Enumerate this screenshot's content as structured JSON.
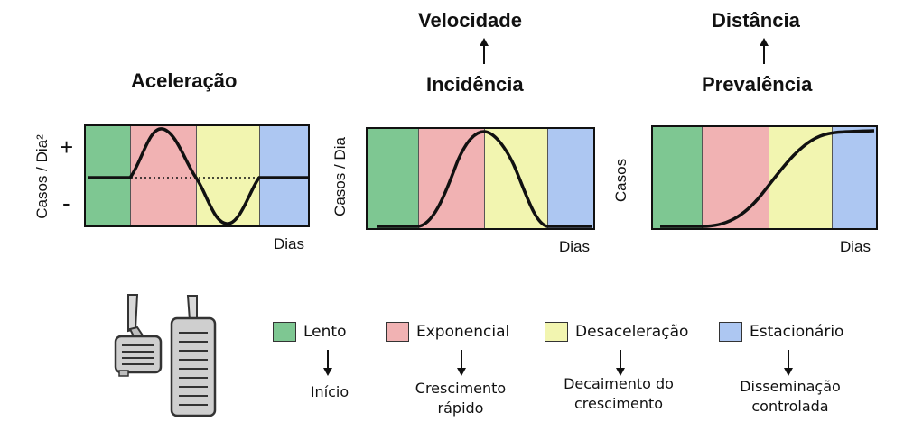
{
  "titles": {
    "acceleration": "Aceleração",
    "velocity": "Velocidade",
    "incidence": "Incidência",
    "distance": "Distância",
    "prevalence": "Prevalência"
  },
  "axes": {
    "panel1_y": "Casos / Dia²",
    "panel2_y": "Casos / Dia",
    "panel3_y": "Casos",
    "x": "Dias",
    "plus": "+",
    "minus": "-"
  },
  "phases": [
    {
      "name": "Lento",
      "color": "#7ec792",
      "outcome": [
        "Início"
      ]
    },
    {
      "name": "Exponencial",
      "color": "#f1b2b3",
      "outcome": [
        "Crescimento",
        "rápido"
      ]
    },
    {
      "name": "Desaceleração",
      "color": "#f2f5b0",
      "outcome": [
        "Decaimento do",
        "crescimento"
      ]
    },
    {
      "name": "Estacionário",
      "color": "#adc7f2",
      "outcome": [
        "Disseminação",
        "controlada"
      ]
    }
  ]
}
